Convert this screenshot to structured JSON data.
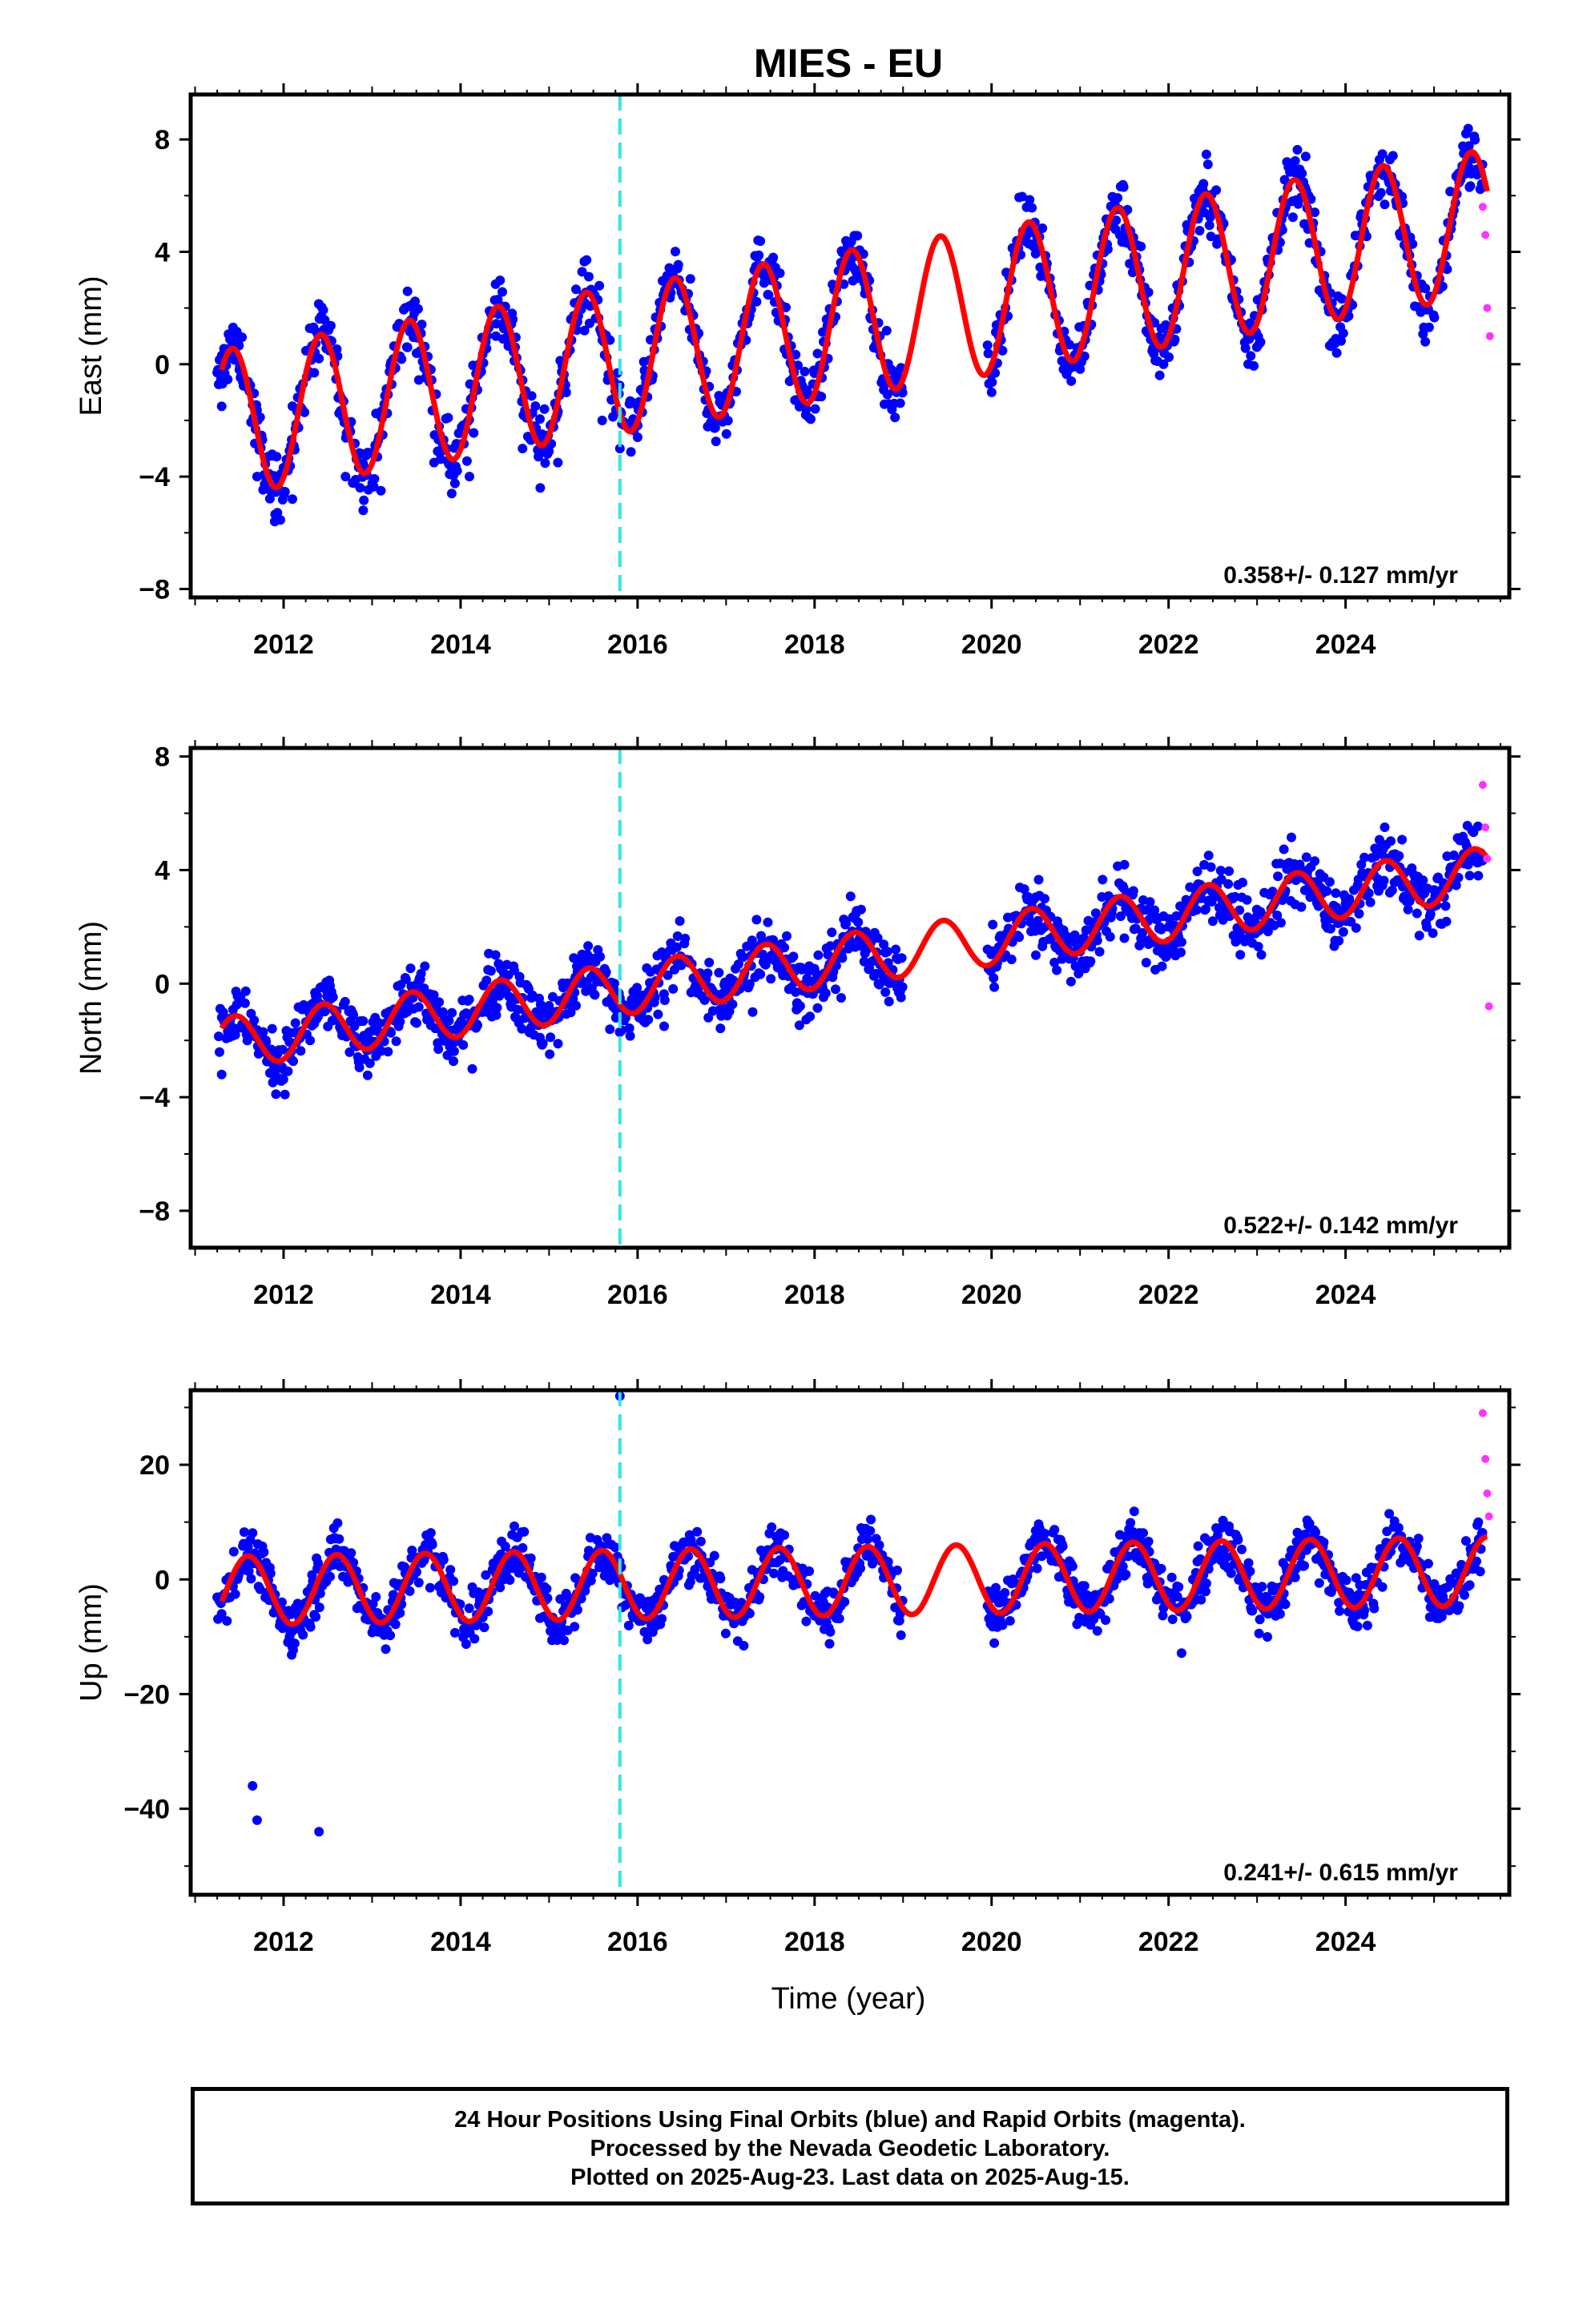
{
  "title": "MIES - EU",
  "xlabel": "Time (year)",
  "caption": [
    "24 Hour Positions Using Final Orbits (blue) and Rapid Orbits (magenta).",
    "Processed by the Nevada Geodetic Laboratory.",
    "Plotted on 2025-Aug-23. Last data on 2025-Aug-15."
  ],
  "colors": {
    "final": "#0000ff",
    "rapid": "#ff33ff",
    "model": "#ff0000",
    "event": "#33e6e6",
    "frame": "#000000"
  },
  "chart_data": [
    {
      "type": "scatter",
      "component": "East",
      "ylabel": "East (mm)",
      "ylim": [
        -8.3,
        9.6
      ],
      "yticks": [
        "8",
        "4",
        "0",
        "−4",
        "−8"
      ],
      "ytick_values": [
        8,
        4,
        0,
        -4,
        -8
      ],
      "xlim": [
        2010.95,
        2025.85
      ],
      "xticks": [
        "2012",
        "2014",
        "2016",
        "2018",
        "2020",
        "2022",
        "2024"
      ],
      "xtick_values": [
        2012,
        2014,
        2016,
        2018,
        2020,
        2022,
        2024
      ],
      "rate": "0.358+/- 0.127 mm/yr",
      "event_line_x": 2015.8,
      "series": [
        {
          "name": "Final Orbits (blue)",
          "x": [
            2011.3,
            2011.5,
            2011.7,
            2011.9,
            2012.1,
            2012.4,
            2012.7,
            2012.9,
            2013.1,
            2013.4,
            2013.7,
            2013.9,
            2014.1,
            2014.4,
            2014.7,
            2014.9,
            2015.1,
            2015.4,
            2015.6,
            2015.8,
            2016.0,
            2016.4,
            2016.9,
            2017.4,
            2017.9,
            2018.4,
            2018.9,
            2020.0,
            2020.4,
            2020.9,
            2021.4,
            2021.9,
            2022.4,
            2022.9,
            2023.4,
            2023.9,
            2024.4,
            2024.9,
            2025.4
          ],
          "y": [
            -1.5,
            -0.2,
            -4.0,
            -5.6,
            -4.8,
            0.2,
            -4.0,
            -5.2,
            -4.5,
            0.6,
            -3.5,
            -4.6,
            -4.0,
            1.0,
            -3.0,
            -4.4,
            -3.5,
            1.2,
            -2.0,
            -3.0,
            -2.6,
            3.3,
            -2.0,
            3.5,
            -1.8,
            4.0,
            -1.4,
            -1.0,
            4.6,
            -0.6,
            4.8,
            -0.4,
            5.4,
            0.0,
            5.8,
            0.4,
            6.1,
            0.8,
            6.3
          ]
        },
        {
          "name": "Rapid Orbits (magenta)",
          "x": [
            2025.55,
            2025.58,
            2025.6,
            2025.63
          ],
          "y": [
            5.6,
            4.6,
            2.0,
            1.0
          ]
        }
      ],
      "model": {
        "offset": -2.1,
        "trend": 0.5,
        "amplitude": 2.6,
        "peak_phase": 0.42
      }
    },
    {
      "type": "scatter",
      "component": "North",
      "ylabel": "North (mm)",
      "ylim": [
        -9.3,
        8.3
      ],
      "yticks": [
        "8",
        "4",
        "0",
        "−4",
        "−8"
      ],
      "ytick_values": [
        8,
        4,
        0,
        -4,
        -8
      ],
      "xlim": [
        2010.95,
        2025.85
      ],
      "xticks": [
        "2012",
        "2014",
        "2016",
        "2018",
        "2020",
        "2022",
        "2024"
      ],
      "xtick_values": [
        2012,
        2014,
        2016,
        2018,
        2020,
        2022,
        2024
      ],
      "rate": "0.522+/- 0.142 mm/yr",
      "event_line_x": 2015.8,
      "series": [
        {
          "name": "Final Orbits (blue)",
          "x": [
            2011.3,
            2011.8,
            2012.3,
            2012.8,
            2013.3,
            2013.8,
            2014.3,
            2014.8,
            2015.3,
            2015.8,
            2016.3,
            2016.8,
            2017.3,
            2017.8,
            2018.3,
            2018.8,
            2020.0,
            2020.5,
            2021.0,
            2021.5,
            2022.0,
            2022.5,
            2023.0,
            2023.5,
            2024.0,
            2024.5,
            2025.0,
            2025.5
          ],
          "y": [
            -3.2,
            -2.0,
            -2.0,
            -1.5,
            -1.5,
            -1.0,
            -1.0,
            -0.5,
            0.0,
            -0.5,
            -1.5,
            -1.2,
            -1.0,
            -0.7,
            -0.5,
            -0.3,
            0.5,
            1.0,
            1.2,
            1.6,
            2.0,
            2.2,
            2.4,
            2.7,
            3.0,
            3.2,
            3.3,
            3.8
          ]
        },
        {
          "name": "Rapid Orbits (magenta)",
          "x": [
            2025.55,
            2025.58,
            2025.6,
            2025.62
          ],
          "y": [
            7.0,
            5.5,
            4.4,
            -0.8
          ]
        }
      ],
      "model": {
        "offset": -2.1,
        "trend": 0.42,
        "amplitude": 0.9,
        "peak_phase": 0.45
      }
    },
    {
      "type": "scatter",
      "component": "Up",
      "ylabel": "Up (mm)",
      "ylim": [
        -55,
        33
      ],
      "yticks": [
        "20",
        "0",
        "−20",
        "−40"
      ],
      "ytick_values": [
        20,
        0,
        -20,
        -40
      ],
      "xlim": [
        2010.95,
        2025.85
      ],
      "xticks": [
        "2012",
        "2014",
        "2016",
        "2018",
        "2020",
        "2022",
        "2024"
      ],
      "xtick_values": [
        2012,
        2014,
        2016,
        2018,
        2020,
        2022,
        2024
      ],
      "rate": "0.241+/- 0.615 mm/yr",
      "event_line_x": 2015.8,
      "series": [
        {
          "name": "Final Orbits (blue)",
          "x": [
            2011.3,
            2011.6,
            2011.65,
            2011.7,
            2012.1,
            2012.4,
            2012.6,
            2013.1,
            2013.6,
            2014.1,
            2014.6,
            2015.1,
            2015.6,
            2015.8,
            2016.1,
            2016.6,
            2017.1,
            2017.6,
            2018.1,
            2018.6,
            2020.1,
            2020.6,
            2021.1,
            2021.6,
            2022.1,
            2022.6,
            2023.1,
            2023.6,
            2024.1,
            2024.6,
            2025.1,
            2025.5
          ],
          "y": [
            -6,
            4,
            -36,
            -42,
            -9,
            -44,
            4,
            -9,
            4,
            -8,
            4,
            -8,
            5,
            32,
            -5,
            7,
            -4,
            7,
            -4,
            7,
            -4,
            8,
            -3,
            8,
            -3,
            9,
            -3,
            9,
            -3,
            9,
            -3,
            10
          ]
        },
        {
          "name": "Rapid Orbits (magenta)",
          "x": [
            2025.55,
            2025.58,
            2025.6,
            2025.62
          ],
          "y": [
            29,
            21,
            15,
            11
          ]
        }
      ],
      "model": {
        "offset": -2.0,
        "trend": 0.24,
        "amplitude": 6.0,
        "peak_phase": 0.6
      }
    }
  ]
}
